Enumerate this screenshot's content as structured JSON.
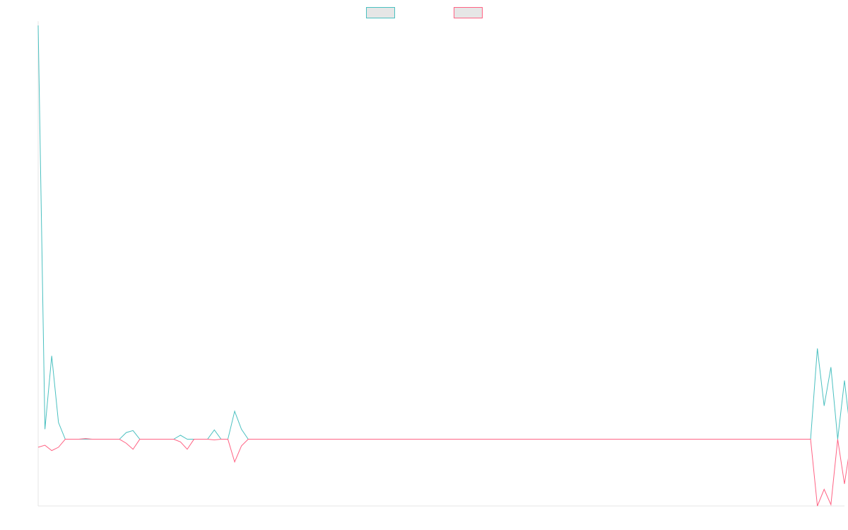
{
  "chart_data": {
    "type": "line",
    "title": "",
    "xlabel": "",
    "ylabel": "",
    "x_count": 120,
    "ylim": [
      -100,
      620
    ],
    "grid": false,
    "legend": "top-center",
    "series": [
      {
        "color": "#4bc0c0",
        "values": [
          620,
          15,
          125,
          25,
          0,
          0,
          0,
          0,
          0,
          0,
          0,
          0,
          0,
          10,
          13,
          0,
          0,
          0,
          0,
          0,
          0,
          6,
          0,
          0,
          0,
          0,
          14,
          0,
          0,
          42,
          15,
          0,
          0,
          0,
          0,
          0,
          0,
          0,
          0,
          0,
          0,
          0,
          0,
          0,
          0,
          0,
          0,
          0,
          0,
          0,
          0,
          0,
          0,
          0,
          0,
          0,
          0,
          0,
          0,
          0,
          0,
          0,
          0,
          0,
          0,
          0,
          0,
          0,
          0,
          0,
          0,
          0,
          0,
          0,
          0,
          0,
          0,
          0,
          0,
          0,
          0,
          0,
          0,
          0,
          0,
          0,
          0,
          0,
          0,
          0,
          0,
          0,
          0,
          0,
          0,
          0,
          0,
          0,
          0,
          0,
          0,
          0,
          0,
          0,
          0,
          0,
          0,
          0,
          0,
          0,
          0,
          0,
          0,
          0,
          0,
          136,
          50,
          108,
          0,
          88,
          0
        ]
      },
      {
        "color": "#ff6384",
        "values": [
          -12,
          -9,
          -17,
          -12,
          0,
          0,
          0,
          1,
          0,
          0,
          0,
          0,
          0,
          -6,
          -15,
          0,
          0,
          0,
          0,
          0,
          0,
          -4,
          -15,
          0,
          0,
          0,
          -1,
          0,
          0,
          -34,
          -10,
          0,
          0,
          0,
          0,
          0,
          0,
          0,
          0,
          0,
          0,
          0,
          0,
          0,
          0,
          0,
          0,
          0,
          0,
          0,
          0,
          0,
          0,
          0,
          0,
          0,
          0,
          0,
          0,
          0,
          0,
          0,
          0,
          0,
          0,
          0,
          0,
          0,
          0,
          0,
          0,
          0,
          0,
          0,
          0,
          0,
          0,
          0,
          0,
          0,
          0,
          0,
          0,
          0,
          0,
          0,
          0,
          0,
          0,
          0,
          0,
          0,
          0,
          0,
          0,
          0,
          0,
          0,
          0,
          0,
          0,
          0,
          0,
          0,
          0,
          0,
          0,
          0,
          0,
          0,
          0,
          0,
          0,
          0,
          0,
          -100,
          -75,
          -98,
          0,
          -67,
          0
        ]
      }
    ]
  }
}
